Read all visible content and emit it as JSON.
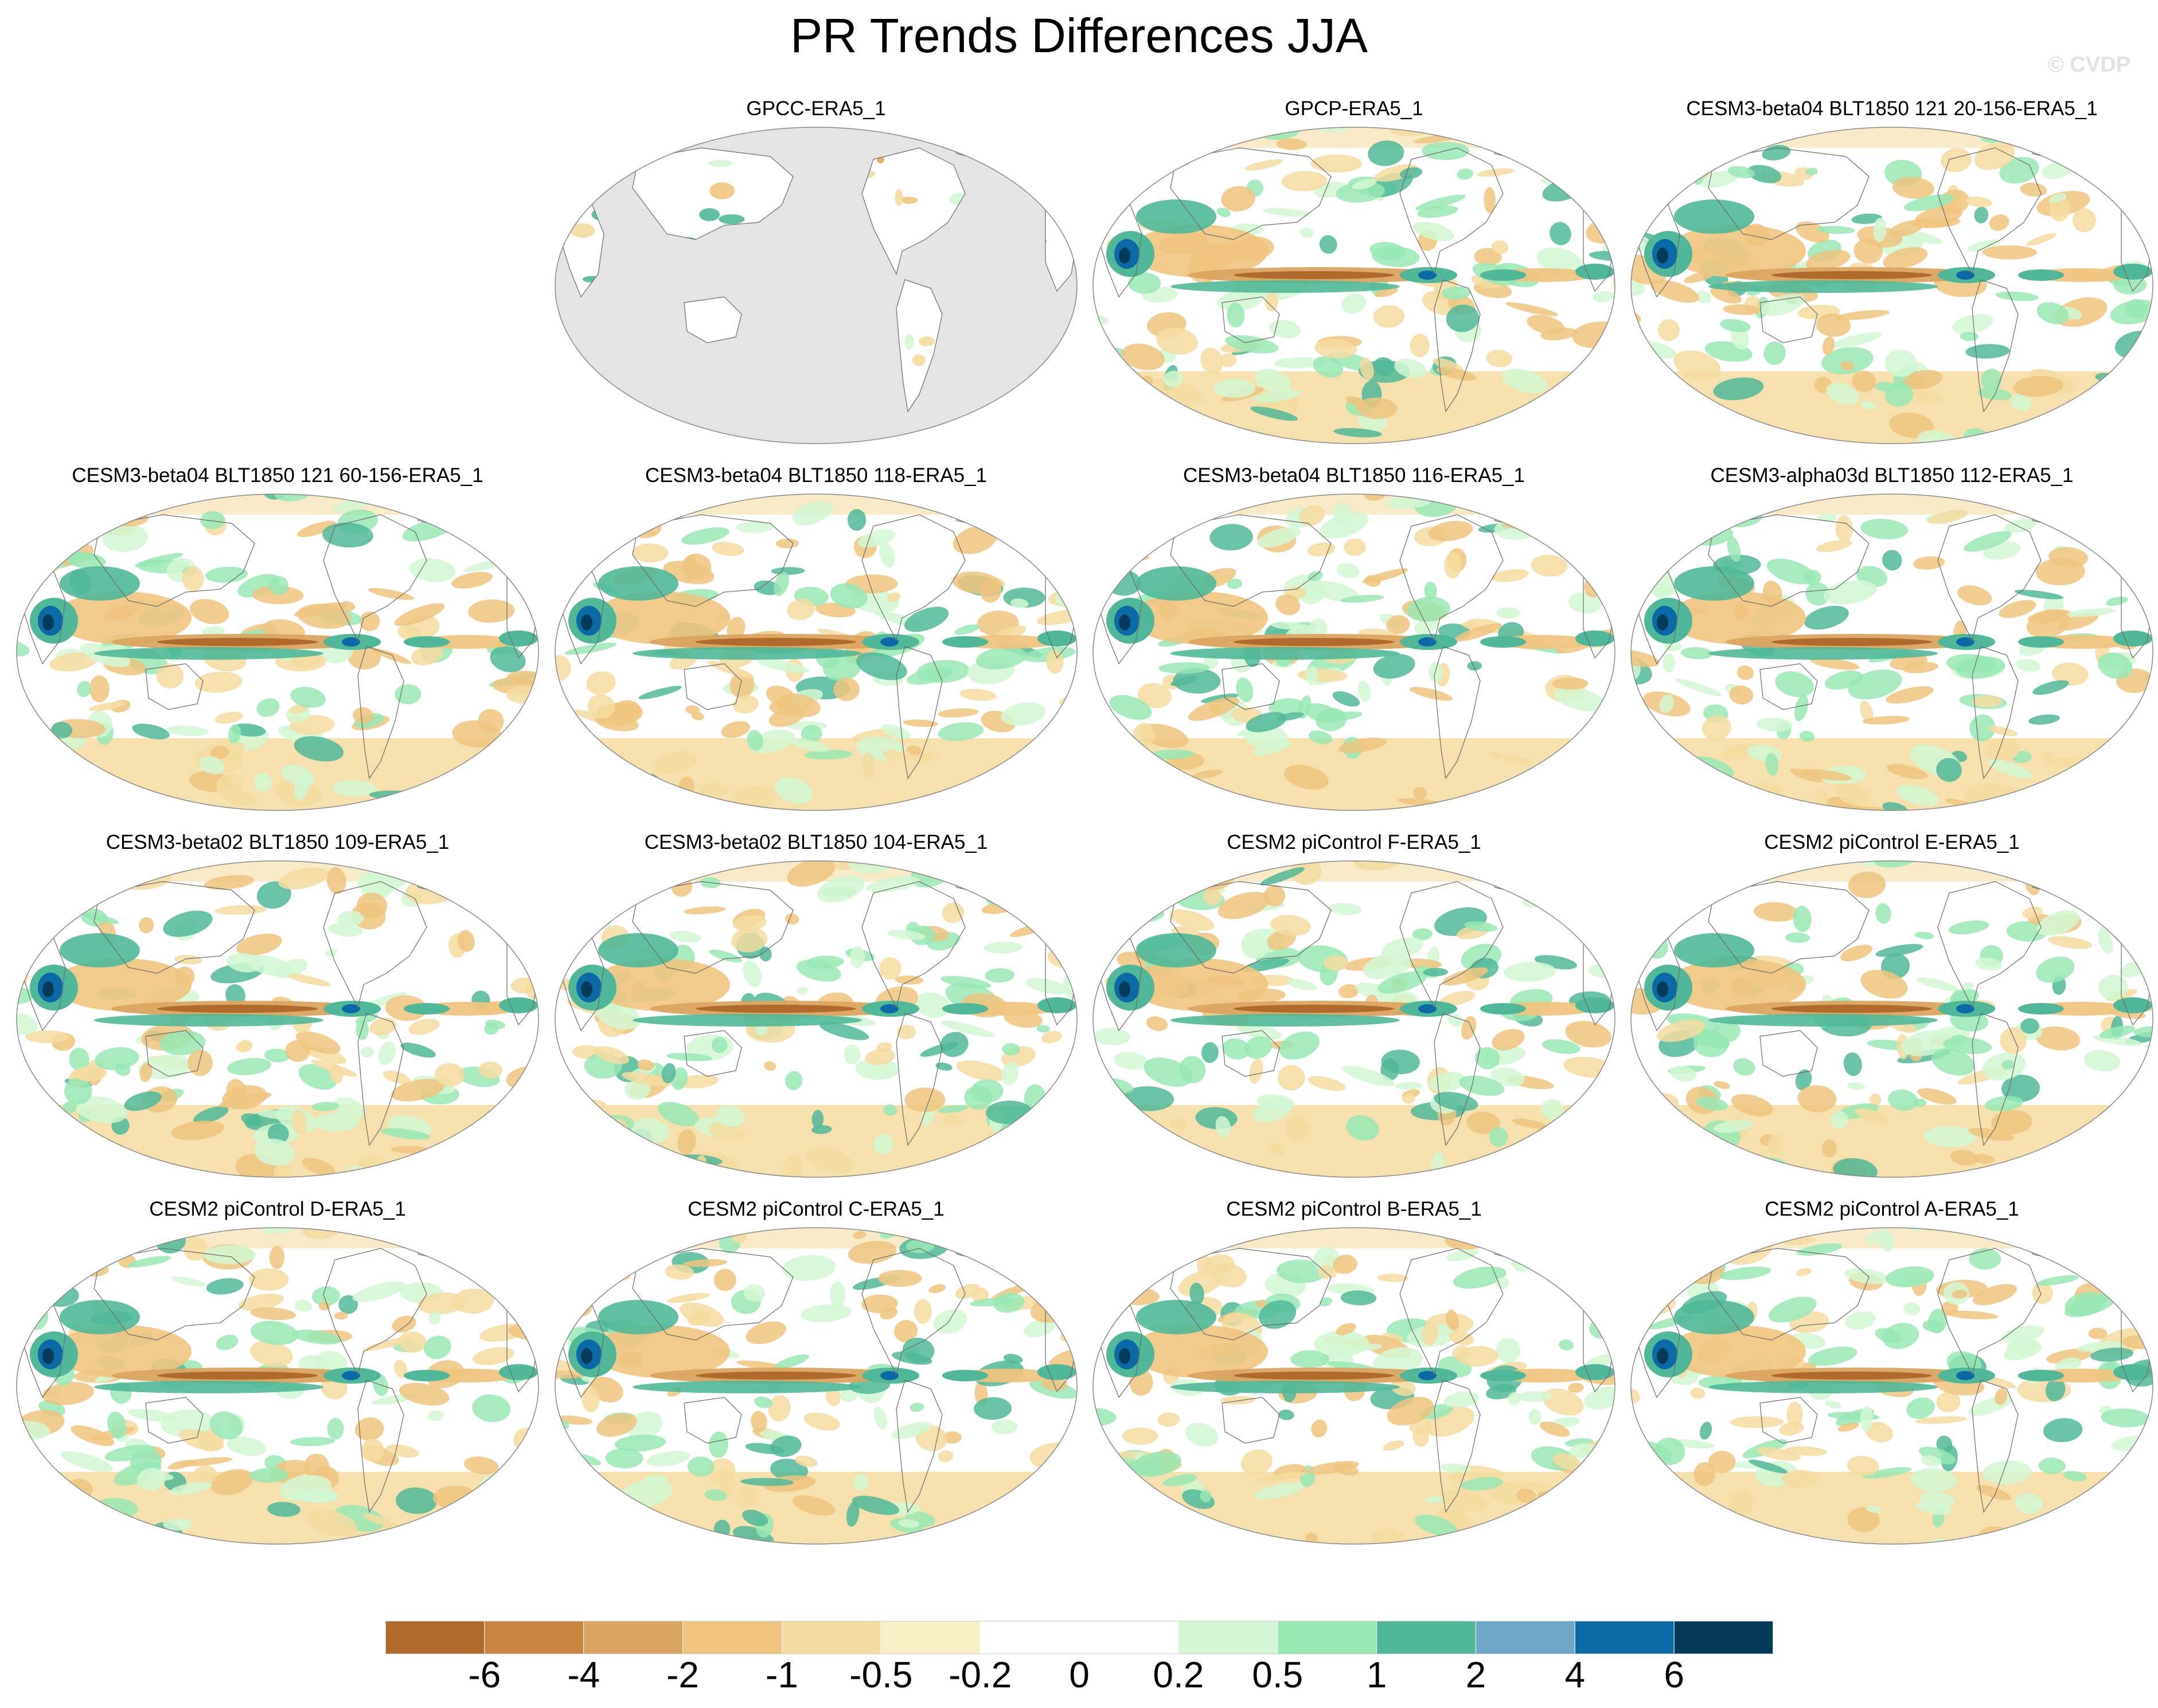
{
  "title": "PR Trends Differences JJA",
  "watermark": "© CVDP",
  "panels": [
    {
      "title": "GPCC-ERA5_1",
      "land_only": true
    },
    {
      "title": "GPCP-ERA5_1"
    },
    {
      "title": "CESM3-beta04 BLT1850 121 20-156-ERA5_1"
    },
    {
      "title": "CESM3-beta04 BLT1850 121 60-156-ERA5_1"
    },
    {
      "title": "CESM3-beta04 BLT1850 118-ERA5_1"
    },
    {
      "title": "CESM3-beta04 BLT1850 116-ERA5_1"
    },
    {
      "title": "CESM3-alpha03d BLT1850 112-ERA5_1"
    },
    {
      "title": "CESM3-beta02 BLT1850 109-ERA5_1"
    },
    {
      "title": "CESM3-beta02 BLT1850 104-ERA5_1"
    },
    {
      "title": "CESM2 piControl F-ERA5_1"
    },
    {
      "title": "CESM2 piControl E-ERA5_1"
    },
    {
      "title": "CESM2 piControl D-ERA5_1"
    },
    {
      "title": "CESM2 piControl C-ERA5_1"
    },
    {
      "title": "CESM2 piControl B-ERA5_1"
    },
    {
      "title": "CESM2 piControl A-ERA5_1"
    }
  ],
  "colorbar": {
    "labels": [
      "-6",
      "-4",
      "-2",
      "-1",
      "-0.5",
      "-0.2",
      "0",
      "0.2",
      "0.5",
      "1",
      "2",
      "4",
      "6"
    ],
    "colors": [
      "#b06a2c",
      "#c9843f",
      "#dba461",
      "#efc47f",
      "#f4dca0",
      "#f8f0c4",
      "#ffffff",
      "#ffffff",
      "#d2f7d2",
      "#98e8b4",
      "#50b898",
      "#6ea6c8",
      "#0b6aa6",
      "#053b5a"
    ]
  },
  "map_colors": {
    "ocean_dry_strong": "#b06a2c",
    "dry_moderate": "#dba461",
    "dry_weak": "#efc47f",
    "dry_faint": "#f4dca0",
    "wet_faint": "#d2f7d2",
    "wet_weak": "#98e8b4",
    "wet_moderate": "#50b898",
    "wet_strong": "#0b6aa6",
    "wet_extreme": "#053b5a",
    "missing": "#e4e4e4",
    "coastline": "#6b6b6b"
  }
}
